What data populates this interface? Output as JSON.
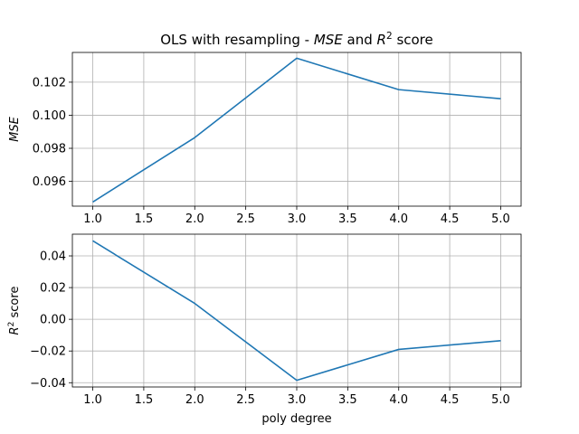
{
  "chart_data": [
    {
      "type": "line",
      "title_parts": [
        {
          "text": "OLS with resampling - ",
          "style": "normal"
        },
        {
          "text": "MSE",
          "style": "italic"
        },
        {
          "text": " and ",
          "style": "normal"
        },
        {
          "text": "R",
          "style": "italic"
        },
        {
          "text": "2",
          "style": "sup"
        },
        {
          "text": " score",
          "style": "normal"
        }
      ],
      "ylabel_parts": [
        {
          "text": "MSE",
          "style": "italic"
        }
      ],
      "x": [
        1.0,
        2.0,
        3.0,
        4.0,
        5.0
      ],
      "series": [
        {
          "values": [
            0.09475,
            0.09865,
            0.10345,
            0.10155,
            0.101
          ],
          "color": "#1f77b4"
        }
      ],
      "xlim": [
        0.8,
        5.2
      ],
      "ylim": [
        0.0945,
        0.1038
      ],
      "xticks": [
        "1.0",
        "1.5",
        "2.0",
        "2.5",
        "3.0",
        "3.5",
        "4.0",
        "4.5",
        "5.0"
      ],
      "yticks": [
        "0.096",
        "0.098",
        "0.100",
        "0.102"
      ],
      "xlabel": "",
      "grid": true
    },
    {
      "type": "line",
      "ylabel_parts": [
        {
          "text": "R",
          "style": "italic"
        },
        {
          "text": "2",
          "style": "sup"
        },
        {
          "text": " score",
          "style": "normal"
        }
      ],
      "x": [
        1.0,
        2.0,
        3.0,
        4.0,
        5.0
      ],
      "series": [
        {
          "values": [
            0.0495,
            0.01,
            -0.0385,
            -0.019,
            -0.0135
          ],
          "color": "#1f77b4"
        }
      ],
      "xlim": [
        0.8,
        5.2
      ],
      "ylim": [
        -0.0427,
        0.0537
      ],
      "xticks": [
        "1.0",
        "1.5",
        "2.0",
        "2.5",
        "3.0",
        "3.5",
        "4.0",
        "4.5",
        "5.0"
      ],
      "yticks": [
        "−0.04",
        "−0.02",
        "0.00",
        "0.02",
        "0.04"
      ],
      "xlabel": "poly degree",
      "grid": true
    }
  ]
}
